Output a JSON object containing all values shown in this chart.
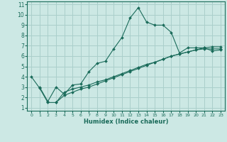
{
  "xlabel": "Humidex (Indice chaleur)",
  "bg_color": "#cce8e4",
  "grid_color": "#aacfcb",
  "line_color": "#1a6b5a",
  "xlim": [
    -0.5,
    23.5
  ],
  "ylim": [
    0.7,
    11.3
  ],
  "xticks": [
    0,
    1,
    2,
    3,
    4,
    5,
    6,
    7,
    8,
    9,
    10,
    11,
    12,
    13,
    14,
    15,
    16,
    17,
    18,
    19,
    20,
    21,
    22,
    23
  ],
  "yticks": [
    1,
    2,
    3,
    4,
    5,
    6,
    7,
    8,
    9,
    10,
    11
  ],
  "curve1_x": [
    1,
    2,
    3,
    4,
    5,
    6,
    7,
    8,
    9,
    10,
    11,
    12,
    13,
    14,
    15,
    16,
    17,
    18,
    19,
    20,
    21,
    22,
    23
  ],
  "curve1_y": [
    3.0,
    1.6,
    3.0,
    2.3,
    3.2,
    3.3,
    4.5,
    5.3,
    5.5,
    6.7,
    7.8,
    9.7,
    10.7,
    9.3,
    9.0,
    9.0,
    8.3,
    6.3,
    6.8,
    6.8,
    6.8,
    6.5,
    6.6
  ],
  "curve2_x": [
    0,
    1,
    2,
    3,
    4,
    5,
    6,
    7,
    8,
    9,
    10,
    11,
    12,
    13,
    14,
    15,
    16,
    17,
    18,
    19,
    20,
    21,
    22,
    23
  ],
  "curve2_y": [
    4.0,
    2.9,
    1.5,
    1.5,
    2.5,
    2.8,
    3.0,
    3.2,
    3.5,
    3.7,
    4.0,
    4.3,
    4.6,
    4.9,
    5.2,
    5.4,
    5.7,
    6.0,
    6.2,
    6.4,
    6.6,
    6.7,
    6.7,
    6.7
  ],
  "curve3_x": [
    3,
    4,
    5,
    6,
    7,
    8,
    9,
    10,
    11,
    12,
    13,
    14,
    15,
    16,
    17,
    18,
    19,
    20,
    21,
    22,
    23
  ],
  "curve3_y": [
    1.5,
    2.2,
    2.5,
    2.8,
    3.0,
    3.3,
    3.6,
    3.9,
    4.2,
    4.5,
    4.8,
    5.1,
    5.4,
    5.7,
    6.0,
    6.2,
    6.4,
    6.6,
    6.8,
    6.9,
    6.9
  ]
}
